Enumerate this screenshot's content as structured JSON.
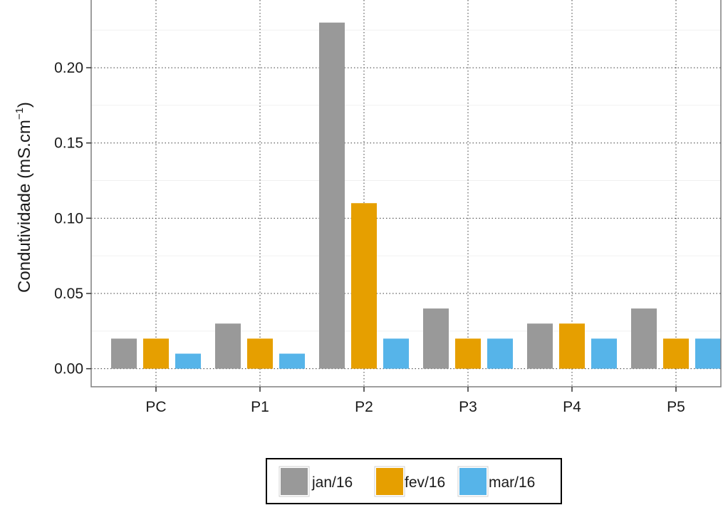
{
  "chart_data": {
    "type": "bar",
    "title": "",
    "xlabel": "",
    "ylabel": "Condutividade (mS.cm",
    "ylabel_superscript": "−1",
    "ylabel_close": ")",
    "categories": [
      "PC",
      "P1",
      "P2",
      "P3",
      "P4",
      "P5"
    ],
    "series": [
      {
        "name": "jan/16",
        "color": "#999999",
        "values": [
          0.02,
          0.03,
          0.23,
          0.04,
          0.03,
          0.04
        ]
      },
      {
        "name": "fev/16",
        "color": "#E69F00",
        "values": [
          0.02,
          0.02,
          0.11,
          0.02,
          0.03,
          0.02
        ]
      },
      {
        "name": "mar/16",
        "color": "#56B4E9",
        "values": [
          0.01,
          0.01,
          0.02,
          0.02,
          0.02,
          0.02
        ]
      }
    ],
    "ylim": [
      -0.012,
      0.245
    ],
    "yticks": [
      "0.00",
      "0.05",
      "0.10",
      "0.15",
      "0.20"
    ],
    "grid": true,
    "legend_position": "bottom"
  }
}
